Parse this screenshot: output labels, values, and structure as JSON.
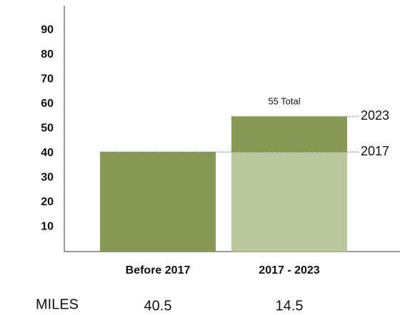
{
  "chart_data": {
    "type": "bar",
    "categories": [
      "Before 2017",
      "2017 - 2023"
    ],
    "series": [
      {
        "color": "#869a56",
        "values": [
          40.5,
          null
        ]
      },
      {
        "color": "#b9c59b",
        "values": [
          null,
          40.5
        ]
      },
      {
        "color": "#869a56",
        "values": [
          null,
          14.5
        ]
      }
    ],
    "ylim": [
      0,
      100
    ],
    "yticks": [
      10,
      20,
      30,
      40,
      50,
      60,
      70,
      80,
      90
    ],
    "total": {
      "value": 55,
      "label": "55 Total"
    },
    "annotations": [
      {
        "value": 40.5,
        "label": "2017"
      },
      {
        "value": 55,
        "label": "2023"
      }
    ],
    "miles": {
      "label": "MILES",
      "values": [
        40.5,
        14.5
      ]
    }
  }
}
